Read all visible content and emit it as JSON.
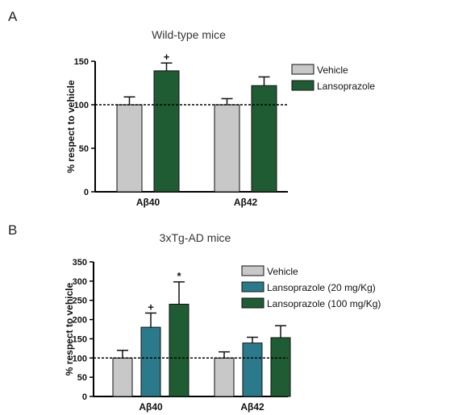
{
  "chart_data": [
    {
      "panel": "A",
      "type": "bar",
      "title": "Wild-type mice",
      "ylabel": "% respect to vehicle",
      "xlabel": "",
      "categories": [
        "Aβ40",
        "Aβ42"
      ],
      "ylim": [
        0,
        150
      ],
      "yticks": [
        0,
        50,
        100,
        150
      ],
      "reference_line": 100,
      "legend_position": "top-right",
      "series": [
        {
          "name": "Vehicle",
          "color": "#c8c8c8",
          "values": [
            100,
            100
          ],
          "errors": [
            9,
            7
          ]
        },
        {
          "name": "Lansoprazole",
          "color": "#1f5c34",
          "values": [
            139,
            122
          ],
          "errors": [
            9,
            10
          ]
        }
      ],
      "annotations": [
        {
          "category": "Aβ40",
          "series": "Lansoprazole",
          "text": "+"
        }
      ]
    },
    {
      "panel": "B",
      "type": "bar",
      "title": "3xTg-AD mice",
      "ylabel": "% respect to vehicle",
      "xlabel": "",
      "categories": [
        "Aβ40",
        "Aβ42"
      ],
      "ylim": [
        0,
        350
      ],
      "yticks": [
        0,
        50,
        100,
        150,
        200,
        250,
        300,
        350
      ],
      "reference_line": 100,
      "legend_position": "top-right",
      "series": [
        {
          "name": "Vehicle",
          "color": "#c8c8c8",
          "values": [
            100,
            100
          ],
          "errors": [
            20,
            16
          ]
        },
        {
          "name": "Lansoprazole (20 mg/Kg)",
          "color": "#2b7a8c",
          "values": [
            180,
            139
          ],
          "errors": [
            37,
            15
          ]
        },
        {
          "name": "Lansoprazole (100 mg/Kg)",
          "color": "#1f5c34",
          "values": [
            240,
            153
          ],
          "errors": [
            58,
            31
          ]
        }
      ],
      "annotations": [
        {
          "category": "Aβ40",
          "series": "Lansoprazole (20 mg/Kg)",
          "text": "+"
        },
        {
          "category": "Aβ40",
          "series": "Lansoprazole (100 mg/Kg)",
          "text": "*"
        }
      ]
    }
  ]
}
